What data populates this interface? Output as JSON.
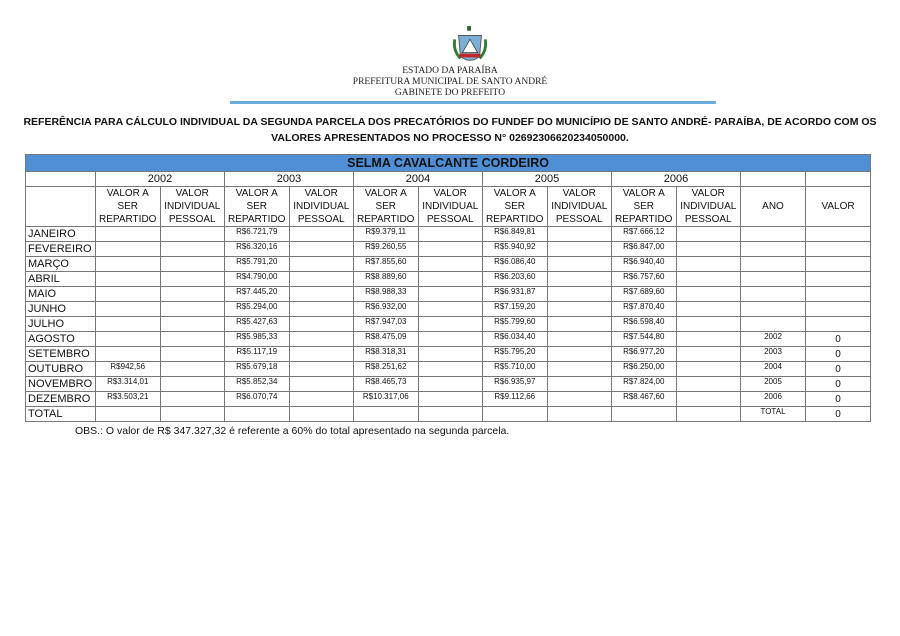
{
  "header": {
    "line1": "ESTADO DA PARAÍBA",
    "line2": "PREFEITURA MUNICIPAL DE SANTO ANDRÉ",
    "line3": "GABINETE DO PREFEITO"
  },
  "title": {
    "line1": "REFERÊNCIA PARA CÁLCULO INDIVIDUAL DA SEGUNDA PARCELA DOS PRECATÓRIOS DO FUNDEF DO MUNICÍPIO DE SANTO ANDRÉ- PARAÍBA, DE ACORDO COM OS",
    "line2": "VALORES APRESENTADOS NO PROCESSO N° 02692306620234050000."
  },
  "colors": {
    "name_row": "#4f8fd6",
    "rule": "#6aaee0"
  },
  "table": {
    "name": "SELMA CAVALCANTE CORDEIRO",
    "years": [
      "2002",
      "2003",
      "2004",
      "2005",
      "2006"
    ],
    "col_a": "VALOR A SER REPARTIDO",
    "col_b": "VALOR INDIVIDUAL PESSOAL",
    "ano": "ANO",
    "valor": "VALOR",
    "rows": [
      {
        "m": "JANEIRO",
        "v": [
          "",
          "R$6.721,79",
          "R$9.379,11",
          "R$6.849,81",
          "R$7.666,12"
        ],
        "ano": "",
        "val": ""
      },
      {
        "m": "FEVEREIRO",
        "v": [
          "",
          "R$6.320,16",
          "R$9.260,55",
          "R$5.940,92",
          "R$6.847,00"
        ],
        "ano": "",
        "val": ""
      },
      {
        "m": "MARÇO",
        "v": [
          "",
          "R$5.791,20",
          "R$7.855,60",
          "R$6.086,40",
          "R$6.940,40"
        ],
        "ano": "",
        "val": ""
      },
      {
        "m": "ABRIL",
        "v": [
          "",
          "R$4.790,00",
          "R$8.889,60",
          "R$6.203,60",
          "R$6.757,60"
        ],
        "ano": "",
        "val": ""
      },
      {
        "m": "MAIO",
        "v": [
          "",
          "R$7.445,20",
          "R$8.988,33",
          "R$6.931,87",
          "R$7.689,60"
        ],
        "ano": "",
        "val": ""
      },
      {
        "m": "JUNHO",
        "v": [
          "",
          "R$5.294,00",
          "R$6.932,00",
          "R$7.159,20",
          "R$7.870,40"
        ],
        "ano": "",
        "val": ""
      },
      {
        "m": "JULHO",
        "v": [
          "",
          "R$5.427,63",
          "R$7.947,03",
          "R$5.799,60",
          "R$6.598,40"
        ],
        "ano": "",
        "val": ""
      },
      {
        "m": "AGOSTO",
        "v": [
          "",
          "R$5.985,33",
          "R$8.475,09",
          "R$6.034,40",
          "R$7.544,80"
        ],
        "ano": "2002",
        "val": "0"
      },
      {
        "m": "SETEMBRO",
        "v": [
          "",
          "R$5.117,19",
          "R$8.318,31",
          "R$5.795,20",
          "R$6.977,20"
        ],
        "ano": "2003",
        "val": "0"
      },
      {
        "m": "OUTUBRO",
        "v": [
          "R$942,56",
          "R$5.679,18",
          "R$8.251,62",
          "R$5.710,00",
          "R$6.250,00"
        ],
        "ano": "2004",
        "val": "0"
      },
      {
        "m": "NOVEMBRO",
        "v": [
          "R$3.314,01",
          "R$5.852,34",
          "R$8.465,73",
          "R$6.935,97",
          "R$7.824,00"
        ],
        "ano": "2005",
        "val": "0"
      },
      {
        "m": "DEZEMBRO",
        "v": [
          "R$3.503,21",
          "R$6.070,74",
          "R$10.317,06",
          "R$9.112,66",
          "R$8.467,60"
        ],
        "ano": "2006",
        "val": "0"
      },
      {
        "m": "TOTAL",
        "v": [
          "",
          "",
          "",
          "",
          ""
        ],
        "ano": "TOTAL",
        "val": "0"
      }
    ]
  },
  "obs": "OBS.: O valor de R$ 347.327,32 é referente a 60% do total apresentado na segunda parcela."
}
